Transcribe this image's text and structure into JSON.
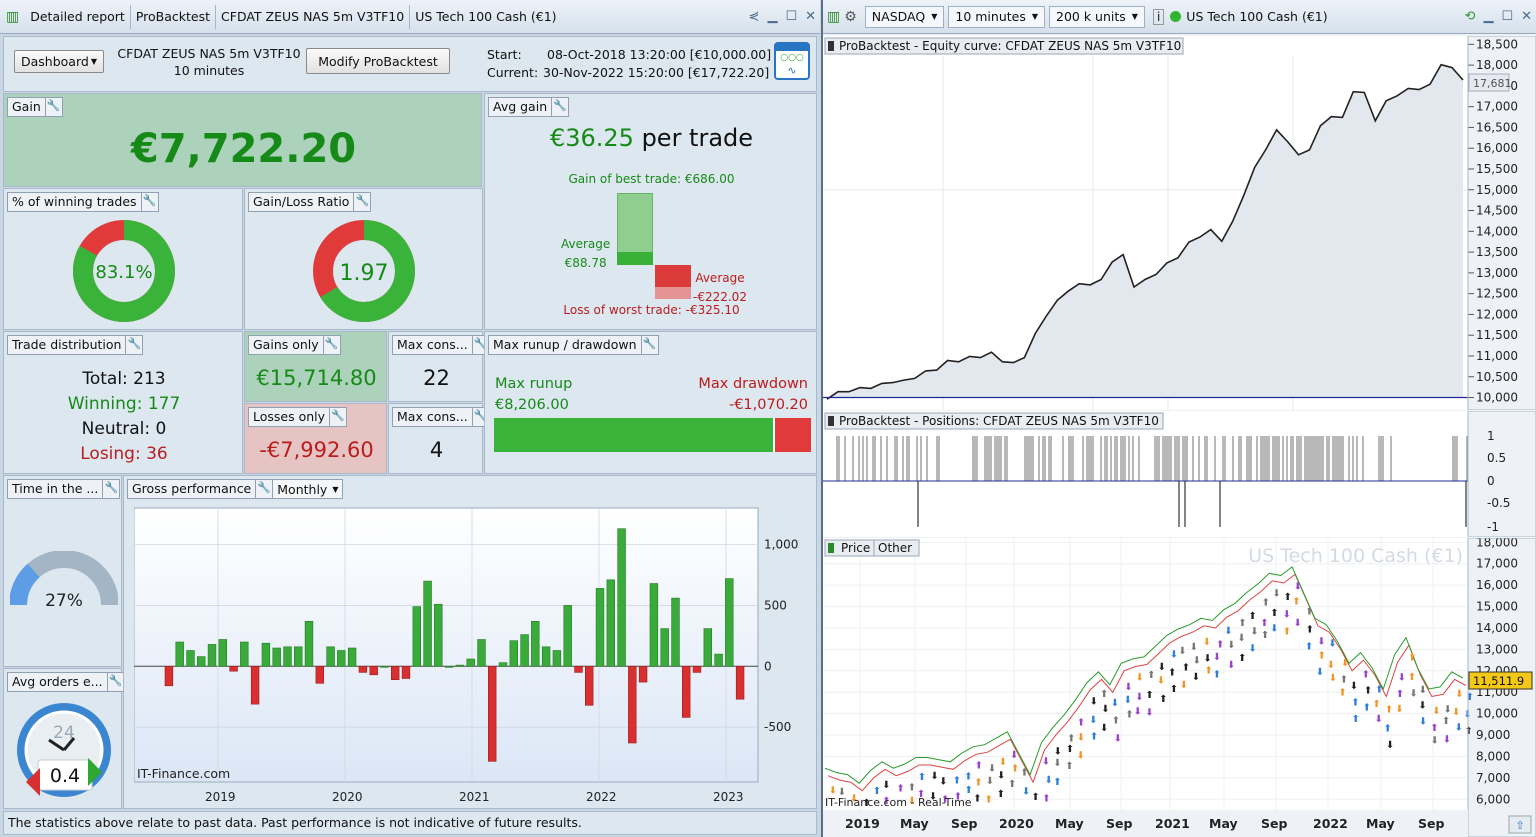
{
  "left_window": {
    "tabs": [
      "Detailed report",
      "ProBacktest",
      "CFDAT ZEUS NAS 5m V3TF10",
      "US Tech 100 Cash (€1)"
    ],
    "dashboard_select": "Dashboard",
    "strategy_name": "CFDAT ZEUS NAS 5m V3TF10",
    "timeframe": "10 minutes",
    "modify_button": "Modify ProBacktest",
    "start_label": "Start:",
    "start_value": "08-Oct-2018 13:20:00 [€10,000.00]",
    "current_label": "Current:",
    "current_value": "30-Nov-2022 15:20:00 [€17,722.20]",
    "gain": {
      "label": "Gain",
      "value": "€7,722.20"
    },
    "avg_gain": {
      "label": "Avg gain",
      "value": "€36.25",
      "suffix": "per trade",
      "best": "Gain of best trade: €686.00",
      "avg_label": "Average",
      "avg_value": "€88.78",
      "avg_loss_label": "Average",
      "avg_loss_value": "-€222.02",
      "worst": "Loss of worst trade: -€325.10"
    },
    "winning_pct": {
      "label": "% of winning trades",
      "value": "83.1%",
      "fraction": 0.831
    },
    "gain_loss": {
      "label": "Gain/Loss Ratio",
      "value": "1.97",
      "fraction": 0.663
    },
    "distribution": {
      "label": "Trade distribution",
      "total": "Total: 213",
      "winning": "Winning: 177",
      "neutral": "Neutral: 0",
      "losing": "Losing: 36"
    },
    "gains_only": {
      "label": "Gains only",
      "value": "€15,714.80"
    },
    "losses_only": {
      "label": "Losses only",
      "value": "-€7,992.60"
    },
    "max_cons_win": {
      "label": "Max cons...",
      "value": "22"
    },
    "max_cons_loss": {
      "label": "Max cons...",
      "value": "4"
    },
    "runup": {
      "label": "Max runup / drawdown",
      "runup_label": "Max runup",
      "runup_value": "€8,206.00",
      "dd_label": "Max drawdown",
      "dd_value": "-€1,070.20",
      "runup_fraction": 0.885
    },
    "time_in_market": {
      "label": "Time in the ...",
      "value": "27%",
      "fraction": 0.27
    },
    "avg_orders": {
      "label": "Avg orders e...",
      "value": "0.4",
      "clock": "24"
    },
    "gross": {
      "label": "Gross performance",
      "period": "Monthly",
      "watermark": "IT-Finance.com"
    },
    "footer": "The statistics above relate to past data. Past performance is not indicative of future results."
  },
  "right_window": {
    "market": "NASDAQ",
    "timeframe": "10 minutes",
    "units": "200 k units",
    "instrument": "US Tech 100 Cash (€1)",
    "equity_title": "ProBacktest - Equity curve: CFDAT ZEUS NAS 5m V3TF10",
    "equity_last": "17,681",
    "positions_title": "ProBacktest - Positions: CFDAT ZEUS NAS 5m V3TF10",
    "price_tab": "Price",
    "other_tab": "Other",
    "price_watermark": "US Tech 100 Cash (€1)",
    "price_last": "11,511.9",
    "bottom_watermark": "IT-Finance.com - Real-Time"
  },
  "chart_data": [
    {
      "type": "bar",
      "title": "Gross performance",
      "period": "Monthly",
      "x_ticks": [
        "2019",
        "2020",
        "2021",
        "2022",
        "2023"
      ],
      "y_ticks": [
        "1,000",
        "500",
        "0",
        "-500"
      ],
      "ylim": [
        -950,
        1300
      ],
      "values": [
        -160,
        200,
        130,
        80,
        180,
        220,
        -40,
        200,
        -310,
        190,
        150,
        160,
        160,
        370,
        -140,
        160,
        130,
        150,
        -50,
        -70,
        0,
        -110,
        -100,
        490,
        700,
        510,
        0,
        10,
        60,
        220,
        -780,
        30,
        210,
        260,
        370,
        160,
        130,
        500,
        -50,
        -320,
        640,
        710,
        1130,
        -630,
        -130,
        680,
        310,
        560,
        -420,
        -50,
        310,
        100,
        720,
        -270
      ]
    },
    {
      "type": "line",
      "title": "ProBacktest - Equity curve: CFDAT ZEUS NAS 5m V3TF10",
      "y_ticks": [
        "18,500",
        "18,000",
        "17,500",
        "17,000",
        "16,500",
        "16,000",
        "15,500",
        "15,000",
        "14,500",
        "14,000",
        "13,500",
        "13,000",
        "12,500",
        "12,000",
        "11,500",
        "11,000",
        "10,500",
        "10,000"
      ],
      "ylim": [
        9700,
        18700
      ],
      "baseline": 10000,
      "points": [
        10000,
        10100,
        10180,
        10200,
        10260,
        10300,
        10400,
        10380,
        10500,
        10600,
        10700,
        10850,
        10900,
        10950,
        11000,
        11050,
        10900,
        10800,
        11000,
        11500,
        12000,
        12300,
        12600,
        12700,
        12750,
        12800,
        13300,
        13400,
        12700,
        12800,
        13000,
        13200,
        13400,
        13700,
        13900,
        14000,
        13800,
        14200,
        14900,
        15500,
        16000,
        16400,
        16200,
        15800,
        16000,
        16500,
        16800,
        16700,
        17400,
        17300,
        16700,
        17100,
        17300,
        17400,
        17450,
        17500,
        18050,
        17900,
        17681
      ]
    },
    {
      "type": "line",
      "title": "Price",
      "y_ticks": [
        "18,000",
        "17,000",
        "16,000",
        "15,000",
        "14,000",
        "13,000",
        "12,000",
        "11,000",
        "10,000",
        "9,000",
        "8,000",
        "7,000",
        "6,000"
      ],
      "x_ticks": [
        "2019",
        "May",
        "Sep",
        "2020",
        "May",
        "Sep",
        "2021",
        "May",
        "Sep",
        "2022",
        "May",
        "Sep"
      ],
      "ylim": [
        5500,
        18200
      ],
      "points": [
        7300,
        7100,
        7000,
        6600,
        7200,
        7600,
        7300,
        7500,
        7800,
        7800,
        7700,
        7600,
        8000,
        8300,
        8400,
        8700,
        9000,
        8000,
        7000,
        8500,
        9200,
        9800,
        10500,
        11300,
        11800,
        11200,
        12200,
        12400,
        12500,
        13000,
        13500,
        13800,
        14000,
        14300,
        14200,
        14700,
        15000,
        15500,
        15900,
        16400,
        16300,
        16700,
        15500,
        14300,
        14000,
        13200,
        12200,
        12700,
        12000,
        11000,
        12600,
        13400,
        12000,
        11000,
        11100,
        11800,
        11511.9
      ]
    }
  ]
}
